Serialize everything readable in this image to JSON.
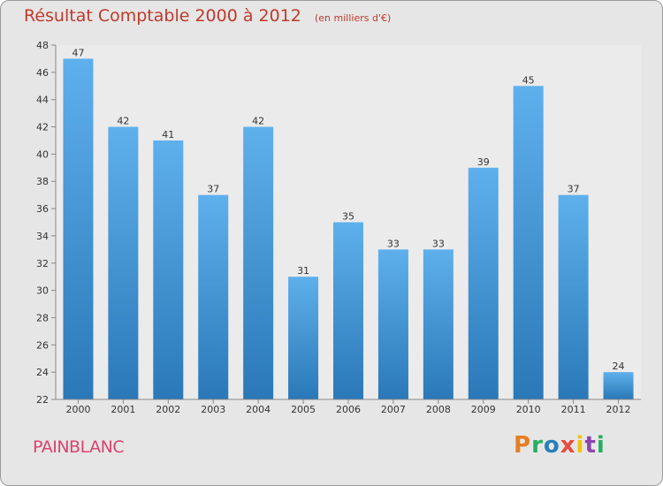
{
  "title": "Résultat Comptable 2000 à 2012",
  "unit_note": "(en milliers d'€)",
  "commune": "PAINBLANC",
  "logo": {
    "letters": [
      "P",
      "r",
      "o",
      "x",
      "i",
      "t",
      "i"
    ],
    "colors": [
      "#e67e22",
      "#27ae60",
      "#2980b9",
      "#e74c3c",
      "#f1c40f",
      "#8e44ad",
      "#27ae60"
    ]
  },
  "chart_data": {
    "type": "bar",
    "categories": [
      "2000",
      "2001",
      "2002",
      "2003",
      "2004",
      "2005",
      "2006",
      "2007",
      "2008",
      "2009",
      "2010",
      "2011",
      "2012"
    ],
    "values": [
      47,
      42,
      41,
      37,
      42,
      31,
      35,
      33,
      33,
      39,
      45,
      37,
      24
    ],
    "ylim": [
      22,
      48
    ],
    "yticks": [
      22,
      24,
      26,
      28,
      30,
      32,
      34,
      36,
      38,
      40,
      42,
      44,
      46,
      48
    ],
    "grid": false,
    "bar_color": "#3a8fd4"
  }
}
